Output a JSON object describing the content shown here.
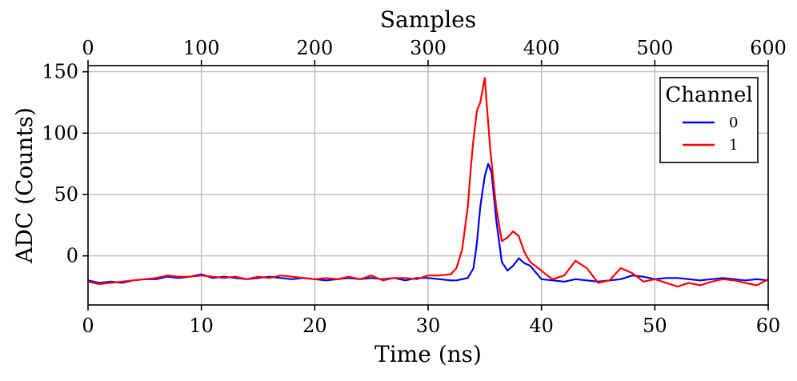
{
  "chart_data": {
    "type": "line",
    "title": "",
    "xlabel": "Time (ns)",
    "ylabel": "ADC (Counts)",
    "x2label": "Samples",
    "xlim": [
      0,
      60
    ],
    "ylim": [
      -40,
      155
    ],
    "x2lim": [
      0,
      600
    ],
    "xticks": [
      0,
      10,
      20,
      30,
      40,
      50,
      60
    ],
    "yticks": [
      0,
      50,
      100,
      150
    ],
    "x2ticks": [
      0,
      100,
      200,
      300,
      400,
      500,
      600
    ],
    "grid": true,
    "legend": {
      "title": "Channel",
      "position": "top-right"
    },
    "series": [
      {
        "name": "0",
        "color": "#0000ff",
        "x": [
          0,
          1,
          2,
          3,
          4,
          5,
          6,
          7,
          8,
          9,
          10,
          11,
          12,
          13,
          14,
          15,
          16,
          17,
          18,
          19,
          20,
          21,
          22,
          23,
          24,
          25,
          26,
          27,
          28,
          29,
          30,
          31,
          32,
          32.5,
          33,
          33.5,
          34,
          34.3,
          34.6,
          35,
          35.3,
          35.6,
          36,
          36.5,
          37,
          37.5,
          38,
          38.5,
          39,
          40,
          41,
          42,
          43,
          44,
          45,
          46,
          47,
          48,
          49,
          50,
          51,
          52,
          53,
          54,
          55,
          56,
          57,
          58,
          59,
          60
        ],
        "y": [
          -20,
          -22,
          -21,
          -22,
          -20,
          -19,
          -19,
          -17,
          -18,
          -17,
          -15,
          -18,
          -17,
          -18,
          -19,
          -18,
          -17,
          -18,
          -19,
          -18,
          -19,
          -20,
          -19,
          -18,
          -19,
          -18,
          -19,
          -18,
          -20,
          -18,
          -18,
          -19,
          -20,
          -20,
          -19,
          -18,
          -10,
          10,
          40,
          65,
          75,
          68,
          30,
          -5,
          -12,
          -8,
          -2,
          -6,
          -8,
          -19,
          -20,
          -21,
          -19,
          -20,
          -21,
          -20,
          -19,
          -16,
          -17,
          -19,
          -18,
          -18,
          -19,
          -20,
          -19,
          -18,
          -19,
          -20,
          -19,
          -20
        ]
      },
      {
        "name": "1",
        "color": "#ff0000",
        "x": [
          0,
          1,
          2,
          3,
          4,
          5,
          6,
          7,
          8,
          9,
          10,
          11,
          12,
          13,
          14,
          15,
          16,
          17,
          18,
          19,
          20,
          21,
          22,
          23,
          24,
          25,
          26,
          27,
          28,
          29,
          30,
          31,
          32,
          32.5,
          33,
          33.5,
          33.8,
          34,
          34.3,
          34.6,
          35,
          35.2,
          35.5,
          36,
          36.5,
          37,
          37.5,
          38,
          38.5,
          39,
          40,
          40.5,
          41,
          42,
          43,
          44,
          45,
          46,
          47,
          48,
          49,
          50,
          51,
          52,
          53,
          54,
          55,
          56,
          57,
          58,
          59,
          60
        ],
        "y": [
          -21,
          -23,
          -22,
          -21,
          -20,
          -19,
          -18,
          -16,
          -17,
          -17,
          -16,
          -17,
          -18,
          -17,
          -19,
          -17,
          -18,
          -16,
          -17,
          -18,
          -19,
          -18,
          -19,
          -17,
          -19,
          -16,
          -20,
          -18,
          -18,
          -19,
          -16,
          -16,
          -15,
          -10,
          5,
          40,
          75,
          95,
          118,
          125,
          145,
          120,
          85,
          40,
          12,
          15,
          20,
          16,
          3,
          -5,
          -12,
          -16,
          -19,
          -16,
          -4,
          -10,
          -22,
          -20,
          -10,
          -14,
          -21,
          -19,
          -22,
          -25,
          -22,
          -24,
          -21,
          -19,
          -20,
          -22,
          -24,
          -19
        ]
      }
    ]
  }
}
